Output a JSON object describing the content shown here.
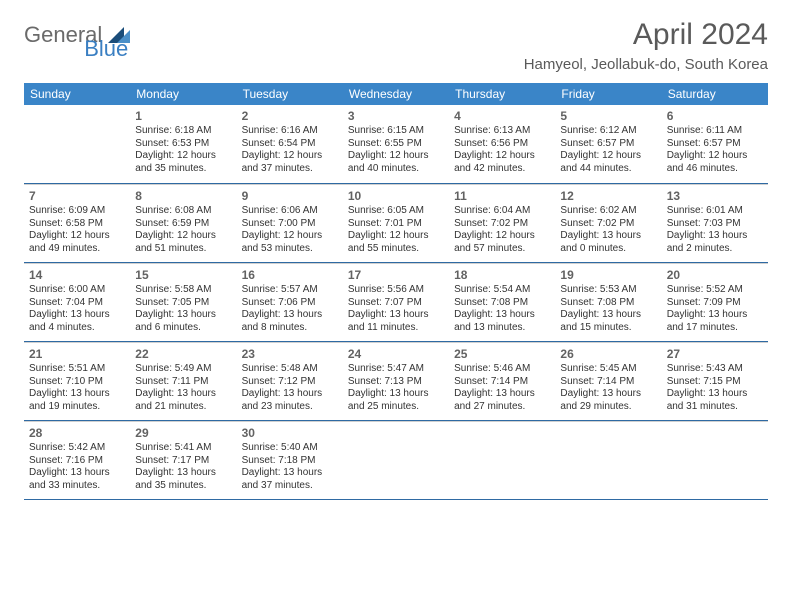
{
  "logo": {
    "general": "General",
    "blue": "Blue"
  },
  "title": "April 2024",
  "location": "Hamyeol, Jeollabuk-do, South Korea",
  "colors": {
    "header_bg": "#3a85c8",
    "week_border": "#2f6aa3",
    "day_border": "#d0d0d0",
    "text": "#333333",
    "title_text": "#5a5a5a",
    "logo_general": "#6a6a6a",
    "logo_blue": "#3a7fc2",
    "logo_shape_dark": "#1a4d7a",
    "logo_shape_light": "#4a8fc8",
    "background": "#ffffff"
  },
  "weekdays": [
    "Sunday",
    "Monday",
    "Tuesday",
    "Wednesday",
    "Thursday",
    "Friday",
    "Saturday"
  ],
  "weeks": [
    [
      null,
      {
        "n": "1",
        "sr": "Sunrise: 6:18 AM",
        "ss": "Sunset: 6:53 PM",
        "d1": "Daylight: 12 hours",
        "d2": "and 35 minutes."
      },
      {
        "n": "2",
        "sr": "Sunrise: 6:16 AM",
        "ss": "Sunset: 6:54 PM",
        "d1": "Daylight: 12 hours",
        "d2": "and 37 minutes."
      },
      {
        "n": "3",
        "sr": "Sunrise: 6:15 AM",
        "ss": "Sunset: 6:55 PM",
        "d1": "Daylight: 12 hours",
        "d2": "and 40 minutes."
      },
      {
        "n": "4",
        "sr": "Sunrise: 6:13 AM",
        "ss": "Sunset: 6:56 PM",
        "d1": "Daylight: 12 hours",
        "d2": "and 42 minutes."
      },
      {
        "n": "5",
        "sr": "Sunrise: 6:12 AM",
        "ss": "Sunset: 6:57 PM",
        "d1": "Daylight: 12 hours",
        "d2": "and 44 minutes."
      },
      {
        "n": "6",
        "sr": "Sunrise: 6:11 AM",
        "ss": "Sunset: 6:57 PM",
        "d1": "Daylight: 12 hours",
        "d2": "and 46 minutes."
      }
    ],
    [
      {
        "n": "7",
        "sr": "Sunrise: 6:09 AM",
        "ss": "Sunset: 6:58 PM",
        "d1": "Daylight: 12 hours",
        "d2": "and 49 minutes."
      },
      {
        "n": "8",
        "sr": "Sunrise: 6:08 AM",
        "ss": "Sunset: 6:59 PM",
        "d1": "Daylight: 12 hours",
        "d2": "and 51 minutes."
      },
      {
        "n": "9",
        "sr": "Sunrise: 6:06 AM",
        "ss": "Sunset: 7:00 PM",
        "d1": "Daylight: 12 hours",
        "d2": "and 53 minutes."
      },
      {
        "n": "10",
        "sr": "Sunrise: 6:05 AM",
        "ss": "Sunset: 7:01 PM",
        "d1": "Daylight: 12 hours",
        "d2": "and 55 minutes."
      },
      {
        "n": "11",
        "sr": "Sunrise: 6:04 AM",
        "ss": "Sunset: 7:02 PM",
        "d1": "Daylight: 12 hours",
        "d2": "and 57 minutes."
      },
      {
        "n": "12",
        "sr": "Sunrise: 6:02 AM",
        "ss": "Sunset: 7:02 PM",
        "d1": "Daylight: 13 hours",
        "d2": "and 0 minutes."
      },
      {
        "n": "13",
        "sr": "Sunrise: 6:01 AM",
        "ss": "Sunset: 7:03 PM",
        "d1": "Daylight: 13 hours",
        "d2": "and 2 minutes."
      }
    ],
    [
      {
        "n": "14",
        "sr": "Sunrise: 6:00 AM",
        "ss": "Sunset: 7:04 PM",
        "d1": "Daylight: 13 hours",
        "d2": "and 4 minutes."
      },
      {
        "n": "15",
        "sr": "Sunrise: 5:58 AM",
        "ss": "Sunset: 7:05 PM",
        "d1": "Daylight: 13 hours",
        "d2": "and 6 minutes."
      },
      {
        "n": "16",
        "sr": "Sunrise: 5:57 AM",
        "ss": "Sunset: 7:06 PM",
        "d1": "Daylight: 13 hours",
        "d2": "and 8 minutes."
      },
      {
        "n": "17",
        "sr": "Sunrise: 5:56 AM",
        "ss": "Sunset: 7:07 PM",
        "d1": "Daylight: 13 hours",
        "d2": "and 11 minutes."
      },
      {
        "n": "18",
        "sr": "Sunrise: 5:54 AM",
        "ss": "Sunset: 7:08 PM",
        "d1": "Daylight: 13 hours",
        "d2": "and 13 minutes."
      },
      {
        "n": "19",
        "sr": "Sunrise: 5:53 AM",
        "ss": "Sunset: 7:08 PM",
        "d1": "Daylight: 13 hours",
        "d2": "and 15 minutes."
      },
      {
        "n": "20",
        "sr": "Sunrise: 5:52 AM",
        "ss": "Sunset: 7:09 PM",
        "d1": "Daylight: 13 hours",
        "d2": "and 17 minutes."
      }
    ],
    [
      {
        "n": "21",
        "sr": "Sunrise: 5:51 AM",
        "ss": "Sunset: 7:10 PM",
        "d1": "Daylight: 13 hours",
        "d2": "and 19 minutes."
      },
      {
        "n": "22",
        "sr": "Sunrise: 5:49 AM",
        "ss": "Sunset: 7:11 PM",
        "d1": "Daylight: 13 hours",
        "d2": "and 21 minutes."
      },
      {
        "n": "23",
        "sr": "Sunrise: 5:48 AM",
        "ss": "Sunset: 7:12 PM",
        "d1": "Daylight: 13 hours",
        "d2": "and 23 minutes."
      },
      {
        "n": "24",
        "sr": "Sunrise: 5:47 AM",
        "ss": "Sunset: 7:13 PM",
        "d1": "Daylight: 13 hours",
        "d2": "and 25 minutes."
      },
      {
        "n": "25",
        "sr": "Sunrise: 5:46 AM",
        "ss": "Sunset: 7:14 PM",
        "d1": "Daylight: 13 hours",
        "d2": "and 27 minutes."
      },
      {
        "n": "26",
        "sr": "Sunrise: 5:45 AM",
        "ss": "Sunset: 7:14 PM",
        "d1": "Daylight: 13 hours",
        "d2": "and 29 minutes."
      },
      {
        "n": "27",
        "sr": "Sunrise: 5:43 AM",
        "ss": "Sunset: 7:15 PM",
        "d1": "Daylight: 13 hours",
        "d2": "and 31 minutes."
      }
    ],
    [
      {
        "n": "28",
        "sr": "Sunrise: 5:42 AM",
        "ss": "Sunset: 7:16 PM",
        "d1": "Daylight: 13 hours",
        "d2": "and 33 minutes."
      },
      {
        "n": "29",
        "sr": "Sunrise: 5:41 AM",
        "ss": "Sunset: 7:17 PM",
        "d1": "Daylight: 13 hours",
        "d2": "and 35 minutes."
      },
      {
        "n": "30",
        "sr": "Sunrise: 5:40 AM",
        "ss": "Sunset: 7:18 PM",
        "d1": "Daylight: 13 hours",
        "d2": "and 37 minutes."
      },
      null,
      null,
      null,
      null
    ]
  ]
}
